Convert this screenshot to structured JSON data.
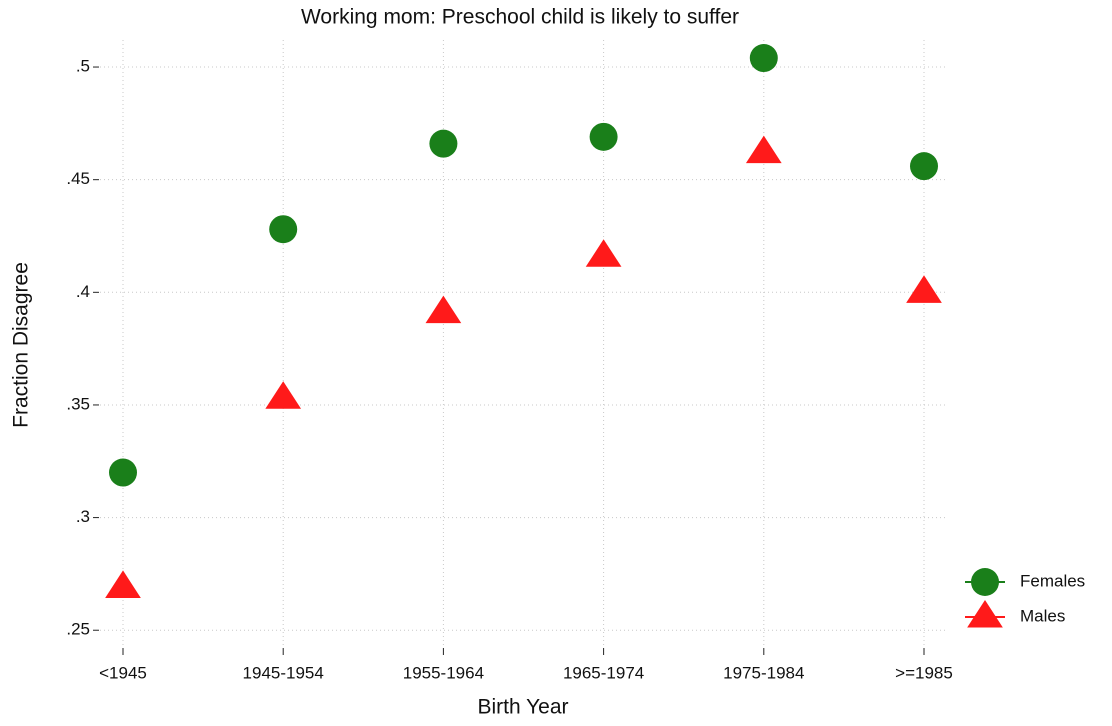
{
  "chart_data": {
    "type": "line",
    "title": "Working mom: Preschool child is likely to suffer",
    "x_label": "Birth Year",
    "y_label": "Fraction Disagree",
    "categories": [
      "<1945",
      "1945-1954",
      "1955-1964",
      "1965-1974",
      "1975-1984",
      ">=1985"
    ],
    "series": [
      {
        "name": "Females",
        "color": "#1a7f1a",
        "marker": "circle",
        "values": [
          0.32,
          0.428,
          0.466,
          0.469,
          0.504,
          0.456
        ]
      },
      {
        "name": "Males",
        "color": "#ff1a1a",
        "marker": "triangle",
        "values": [
          0.269,
          0.353,
          0.391,
          0.416,
          0.462,
          0.4
        ]
      }
    ],
    "ylim": [
      0.243,
      0.512
    ],
    "yticks": [
      {
        "value": 0.25,
        "label": ".25"
      },
      {
        "value": 0.3,
        "label": ".3"
      },
      {
        "value": 0.35,
        "label": ".35"
      },
      {
        "value": 0.4,
        "label": ".4"
      },
      {
        "value": 0.45,
        "label": ".45"
      },
      {
        "value": 0.5,
        "label": ".5"
      }
    ],
    "grid": true,
    "legend": "right"
  }
}
